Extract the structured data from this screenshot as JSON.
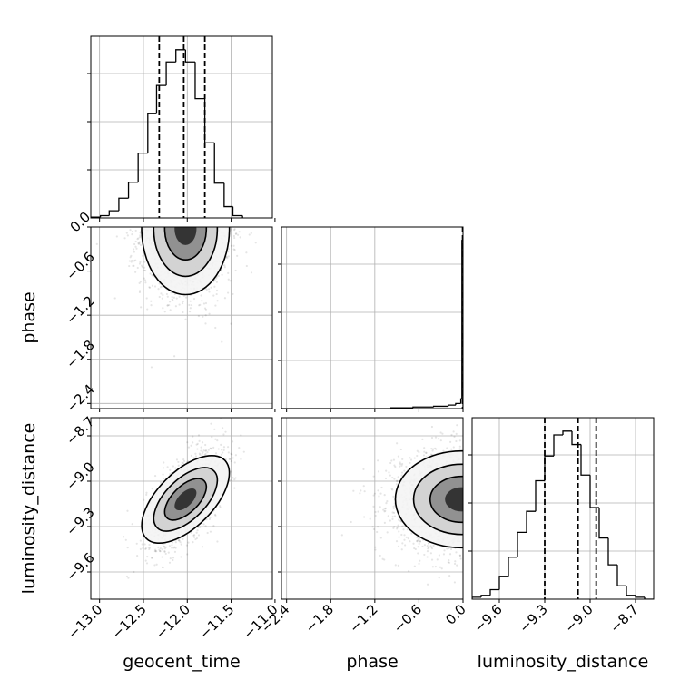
{
  "chart_data": {
    "type": "corner",
    "parameters": [
      "geocent_time",
      "phase",
      "luminosity_distance"
    ],
    "ranges": {
      "geocent_time": [
        -13.1,
        -11.03
      ],
      "phase": [
        -2.47,
        0.0
      ],
      "luminosity_distance": [
        -9.78,
        -8.58
      ]
    },
    "ticks": {
      "geocent_time": [
        {
          "value": -13.0,
          "label": "−13.0"
        },
        {
          "value": -12.5,
          "label": "−12.5"
        },
        {
          "value": -12.0,
          "label": "−12.0"
        },
        {
          "value": -11.5,
          "label": "−11.5"
        },
        {
          "value": -11.0,
          "label": "−11.0"
        }
      ],
      "phase": [
        {
          "value": -2.4,
          "label": "−2.4"
        },
        {
          "value": -1.8,
          "label": "−1.8"
        },
        {
          "value": -1.2,
          "label": "−1.2"
        },
        {
          "value": -0.6,
          "label": "−0.6"
        },
        {
          "value": 0.0,
          "label": "0.0"
        }
      ],
      "luminosity_distance": [
        {
          "value": -9.6,
          "label": "−9.6"
        },
        {
          "value": -9.3,
          "label": "−9.3"
        },
        {
          "value": -9.0,
          "label": "−9.0"
        },
        {
          "value": -8.7,
          "label": "−8.7"
        }
      ]
    },
    "marginals": {
      "geocent_time": {
        "bin_edges": [
          -13.1,
          -12.99,
          -12.89,
          -12.78,
          -12.67,
          -12.56,
          -12.45,
          -12.35,
          -12.24,
          -12.13,
          -12.02,
          -11.91,
          -11.8,
          -11.69,
          -11.58,
          -11.48,
          -11.37
        ],
        "counts": [
          0.4,
          1.2,
          3.8,
          10.5,
          19,
          34.5,
          55.5,
          70.5,
          83,
          89.5,
          83,
          63.5,
          40,
          18.5,
          6,
          1.2
        ],
        "quantiles": [
          -12.32,
          -12.04,
          -11.8
        ]
      },
      "phase": {
        "bin_edges": [
          -2.47,
          -0.98,
          -0.68,
          -0.4,
          -0.2,
          -0.1,
          -0.03,
          -0.015,
          0.0
        ],
        "counts": [
          0,
          0.4,
          0.8,
          1.2,
          1.8,
          2.6,
          5.0,
          86
        ],
        "quantiles": [
          -0.005,
          -0.002,
          0.0
        ]
      },
      "luminosity_distance": {
        "bin_edges": [
          -9.78,
          -9.72,
          -9.66,
          -9.6,
          -9.54,
          -9.48,
          -9.42,
          -9.36,
          -9.3,
          -9.24,
          -9.18,
          -9.12,
          -9.06,
          -9.0,
          -8.94,
          -8.88,
          -8.82,
          -8.76,
          -8.7,
          -8.64,
          -8.58
        ],
        "counts": [
          1,
          2,
          5,
          12,
          22,
          35,
          46,
          62,
          75,
          86,
          88,
          81,
          65,
          48,
          32,
          18,
          7,
          2,
          1,
          0
        ],
        "quantiles": [
          -9.3,
          -9.08,
          -8.96
        ]
      }
    },
    "joint": [
      {
        "x": "geocent_time",
        "y": "phase",
        "center": [
          -12.02,
          -0.02
        ],
        "spread": [
          0.25,
          0.45
        ],
        "correlation": 0
      },
      {
        "x": "geocent_time",
        "y": "luminosity_distance",
        "center": [
          -12.02,
          -9.12
        ],
        "spread": [
          0.22,
          0.16
        ],
        "correlation": 0.6
      },
      {
        "x": "phase",
        "y": "luminosity_distance",
        "center": [
          -0.02,
          -9.12
        ],
        "spread": [
          0.45,
          0.16
        ],
        "correlation": 0
      }
    ]
  }
}
